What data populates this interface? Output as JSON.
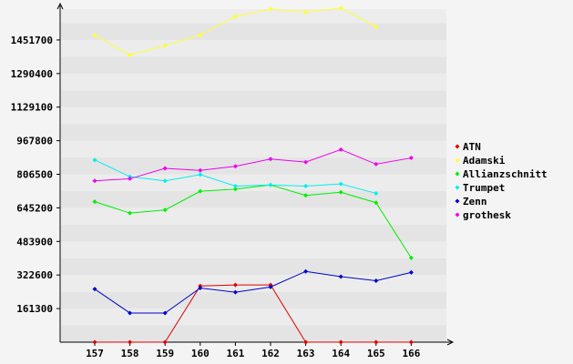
{
  "chart_data": {
    "type": "line",
    "categories": [
      "157",
      "158",
      "159",
      "160",
      "161",
      "162",
      "163",
      "164",
      "165",
      "166"
    ],
    "y_ticks": [
      161300,
      322600,
      483900,
      645200,
      806500,
      967800,
      1129100,
      1290400,
      1451700
    ],
    "y_tick_labels": [
      "161300",
      "322600",
      "483900",
      "645200",
      "806500",
      "967800",
      "1129100",
      "1290400",
      "1451700"
    ],
    "ylim": [
      0,
      1600000
    ],
    "grid": true,
    "legend_position": "right",
    "series": [
      {
        "name": "ATN",
        "color": "#dd0000",
        "values": [
          0,
          0,
          0,
          270000,
          275000,
          275000,
          0,
          0,
          0,
          0
        ]
      },
      {
        "name": "Adamski",
        "color": "#ffff33",
        "values": [
          1475000,
          1380000,
          1425000,
          1475000,
          1565000,
          1600000,
          1585000,
          1605000,
          1515000,
          null
        ]
      },
      {
        "name": "Allianzschnitt",
        "color": "#00ee00",
        "values": [
          675000,
          620000,
          635000,
          725000,
          735000,
          755000,
          705000,
          720000,
          670000,
          405000
        ]
      },
      {
        "name": "Trumpet",
        "color": "#00eeee",
        "values": [
          875000,
          795000,
          775000,
          805000,
          750000,
          755000,
          750000,
          760000,
          715000,
          null
        ]
      },
      {
        "name": "Zenn",
        "color": "#0000cc",
        "values": [
          255000,
          140000,
          140000,
          260000,
          240000,
          265000,
          340000,
          315000,
          295000,
          335000
        ]
      },
      {
        "name": "grothesk",
        "color": "#ee00ee",
        "values": [
          775000,
          785000,
          835000,
          825000,
          845000,
          880000,
          865000,
          925000,
          855000,
          885000
        ]
      }
    ]
  }
}
